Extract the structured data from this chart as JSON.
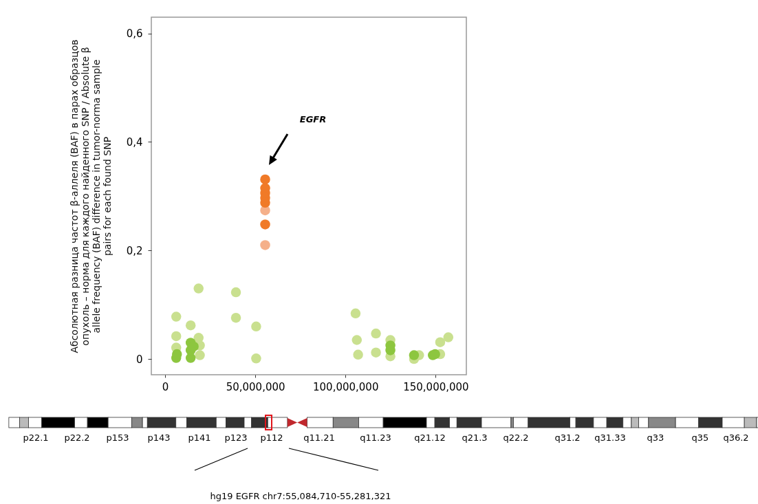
{
  "chart_data": {
    "type": "scatter",
    "ylabel": "Абсолютная разница частот β-аллеля (BAF) в парах образцов опухоль – норма для каждого найденного SNP / Absolute β allele frequency (BAF) difference in tumor-norma sample pairs for each found SNP",
    "xlim": [
      -7600000,
      167000000
    ],
    "ylim": [
      -0.029,
      0.63
    ],
    "xticks": [
      {
        "value": 0,
        "label": "0"
      },
      {
        "value": 50000000,
        "label": "50,000,000"
      },
      {
        "value": 100000000,
        "label": "100,000,000"
      },
      {
        "value": 150000000,
        "label": "150,000,000"
      }
    ],
    "yticks": [
      0,
      {
        "value": 0.2,
        "label": "0,2"
      },
      {
        "value": 0.4,
        "label": "0,4"
      },
      {
        "value": 0.6,
        "label": "0,6"
      }
    ],
    "grid": false,
    "legend": false,
    "series": [
      {
        "color": "#c9e08f",
        "x": [
          6200000,
          6200000,
          6200000,
          14200000,
          18600000,
          18600000,
          19300000,
          19300000,
          39300000,
          39300000,
          50500000,
          50500000,
          105600000,
          106300000,
          107000000,
          116900000,
          116900000,
          124900000,
          124900000,
          138000000,
          140800000,
          152500000,
          152500000,
          157000000
        ],
        "values": [
          0.078,
          0.042,
          0.021,
          0.062,
          0.13,
          0.039,
          0.025,
          0.007,
          0.123,
          0.076,
          0.06,
          0.001,
          0.084,
          0.035,
          0.008,
          0.047,
          0.012,
          0.035,
          0.005,
          0.0,
          0.007,
          0.031,
          0.009,
          0.04
        ]
      },
      {
        "color": "#8dc63f",
        "x": [
          6200000,
          6600000,
          14200000,
          14200000,
          14200000,
          15900000,
          124900000,
          124900000,
          138000000,
          148400000,
          149700000
        ],
        "values": [
          0.002,
          0.009,
          0.002,
          0.016,
          0.03,
          0.023,
          0.025,
          0.016,
          0.007,
          0.007,
          0.009
        ]
      },
      {
        "color": "#f5b08a",
        "x": [
          55500000,
          55500000
        ],
        "values": [
          0.274,
          0.21
        ]
      },
      {
        "color": "#f07a28",
        "x": [
          55500000,
          55500000,
          55500000,
          55500000,
          55500000,
          55500000
        ],
        "values": [
          0.331,
          0.315,
          0.306,
          0.297,
          0.288,
          0.248
        ]
      }
    ],
    "annotations": [
      "EGFR",
      "p22.1",
      "p22.2",
      "p153",
      "p143",
      "p141",
      "p123",
      "p112",
      "q11.21",
      "q11.23",
      "q21.12",
      "q21.3",
      "q22.2",
      "q31.2",
      "q31.33",
      "q33",
      "q35",
      "q36.2",
      "hg19 EGFR chr7:55,084,710-55,281,321"
    ]
  }
}
